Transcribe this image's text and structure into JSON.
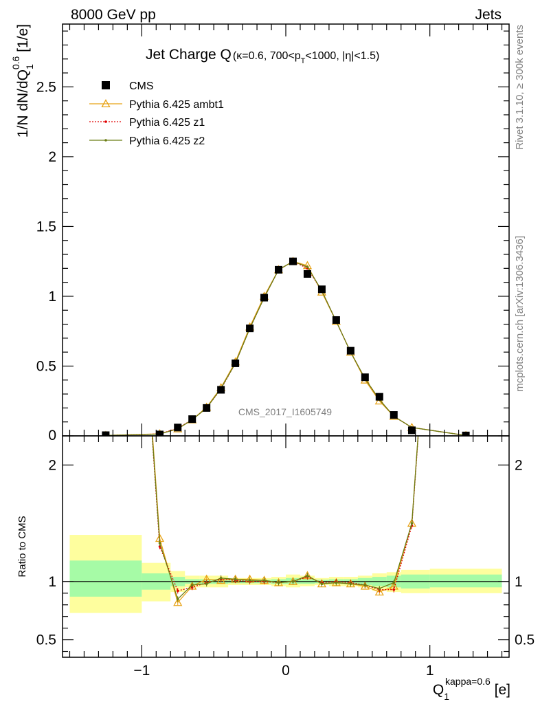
{
  "header": {
    "left": "8000 GeV pp",
    "right": "Jets"
  },
  "side": {
    "rivet": "Rivet 3.1.10, ≥ 300k events",
    "mcplots": "mcplots.cern.ch [arXiv:1306.3436]"
  },
  "watermark": "CMS_2017_I1605749",
  "colors": {
    "ambt1": "#e8a317",
    "z1": "#e00000",
    "z2": "#6b7d14",
    "band_inner": "#a6fba6",
    "band_outer": "#fefe9e"
  },
  "chart_data": [
    {
      "type": "line",
      "title": "Jet Charge Q(κ=0.6, 700<p_T<1000, |η|<1.5)",
      "title_main": "Jet Charge Q",
      "title_sub_1": "(κ=0.6, 700<p",
      "title_sub_T": "T",
      "title_sub_2": "<1000, |η|<1.5)",
      "ylabel_a": "1/N dN/dQ",
      "ylabel_sup": "0.6",
      "ylabel_sub": "1",
      "ylabel_b": " [1/e]",
      "xlim": [
        -1.55,
        1.55
      ],
      "ylim": [
        0,
        2.95
      ],
      "yticks": [
        {
          "v": 0.5,
          "label": "0.5"
        },
        {
          "v": 1,
          "label": "1"
        },
        {
          "v": 1.5,
          "label": "1.5"
        },
        {
          "v": 2,
          "label": "2"
        },
        {
          "v": 2.5,
          "label": "2.5"
        }
      ],
      "y0_label": "0",
      "legend": [
        {
          "key": "cms",
          "label": "CMS"
        },
        {
          "key": "ambt1",
          "label": "Pythia 6.425 ambt1"
        },
        {
          "key": "z1",
          "label": "Pythia 6.425 z1"
        },
        {
          "key": "z2",
          "label": "Pythia 6.425 z2"
        }
      ],
      "x": [
        -1.25,
        -0.875,
        -0.75,
        -0.65,
        -0.55,
        -0.45,
        -0.35,
        -0.25,
        -0.15,
        -0.05,
        0.05,
        0.15,
        0.25,
        0.35,
        0.45,
        0.55,
        0.65,
        0.75,
        0.875,
        1.25
      ],
      "series": [
        {
          "key": "cms",
          "name": "CMS",
          "values": [
            0.005,
            0.01,
            0.06,
            0.12,
            0.2,
            0.33,
            0.52,
            0.77,
            0.99,
            1.19,
            1.25,
            1.16,
            1.05,
            0.83,
            0.61,
            0.42,
            0.28,
            0.15,
            0.04,
            0.003
          ]
        },
        {
          "key": "ambt1",
          "name": "Pythia 6.425 ambt1",
          "values": [
            0.003,
            0.015,
            0.05,
            0.115,
            0.205,
            0.345,
            0.53,
            0.78,
            1.0,
            1.19,
            1.25,
            1.22,
            1.03,
            0.82,
            0.6,
            0.4,
            0.25,
            0.14,
            0.06,
            0.003
          ]
        },
        {
          "key": "z1",
          "name": "Pythia 6.425 z1",
          "values": [
            0.003,
            0.014,
            0.055,
            0.115,
            0.2,
            0.335,
            0.52,
            0.77,
            0.99,
            1.19,
            1.25,
            1.2,
            1.04,
            0.82,
            0.6,
            0.41,
            0.26,
            0.14,
            0.06,
            0.003
          ]
        },
        {
          "key": "z2",
          "name": "Pythia 6.425 z2",
          "values": [
            0.003,
            0.013,
            0.05,
            0.115,
            0.2,
            0.34,
            0.52,
            0.77,
            0.99,
            1.19,
            1.25,
            1.21,
            1.04,
            0.82,
            0.6,
            0.41,
            0.26,
            0.14,
            0.06,
            0.003
          ]
        }
      ]
    },
    {
      "type": "line",
      "ylabel": "Ratio to CMS",
      "xlabel_a": "Q",
      "xlabel_sub": "1",
      "xlabel_sup": "kappa=0.6",
      "xlabel_b": " [e]",
      "xlim": [
        -1.55,
        1.55
      ],
      "ylim": [
        0.35,
        2.25
      ],
      "yticks": [
        {
          "v": 0.5,
          "label": "0.5"
        },
        {
          "v": 1,
          "label": "1"
        },
        {
          "v": 2,
          "label": "2"
        }
      ],
      "xticks": [
        {
          "v": -1,
          "label": "−1"
        },
        {
          "v": 0,
          "label": "0"
        },
        {
          "v": 1,
          "label": "1"
        }
      ],
      "x": [
        -0.875,
        -0.75,
        -0.65,
        -0.55,
        -0.45,
        -0.35,
        -0.25,
        -0.15,
        -0.05,
        0.05,
        0.15,
        0.25,
        0.35,
        0.45,
        0.55,
        0.65,
        0.75,
        0.875
      ],
      "series": [
        {
          "key": "ambt1",
          "name": "Pythia 6.425 ambt1",
          "values": [
            1.37,
            0.82,
            0.96,
            1.02,
            1.01,
            1.02,
            1.02,
            1.01,
            0.99,
            1.0,
            1.05,
            0.98,
            0.99,
            0.98,
            0.96,
            0.91,
            0.96,
            1.5
          ]
        },
        {
          "key": "z1",
          "name": "Pythia 6.425 z1",
          "values": [
            1.3,
            0.92,
            0.95,
            0.99,
            1.02,
            1.01,
            1.0,
            1.0,
            0.99,
            1.0,
            1.04,
            0.99,
            1.0,
            0.99,
            0.97,
            0.93,
            0.93,
            1.48
          ]
        },
        {
          "key": "z2",
          "name": "Pythia 6.425 z2",
          "values": [
            1.33,
            0.85,
            0.97,
            0.98,
            1.03,
            1.02,
            1.01,
            1.01,
            0.99,
            1.0,
            1.05,
            0.98,
            0.99,
            0.98,
            0.97,
            0.94,
            0.99,
            1.5
          ]
        }
      ],
      "bands": [
        {
          "x0": -1.5,
          "x1": -1.0,
          "inner": [
            0.87,
            1.18
          ],
          "outer": [
            0.73,
            1.4
          ]
        },
        {
          "x0": -1.0,
          "x1": -0.8,
          "inner": [
            0.93,
            1.07
          ],
          "outer": [
            0.83,
            1.16
          ]
        },
        {
          "x0": -0.8,
          "x1": -0.7,
          "inner": [
            0.96,
            1.04
          ],
          "outer": [
            0.91,
            1.09
          ]
        },
        {
          "x0": -0.7,
          "x1": -0.6,
          "inner": [
            0.98,
            1.02
          ],
          "outer": [
            0.95,
            1.05
          ]
        },
        {
          "x0": -0.6,
          "x1": -0.4,
          "inner": [
            0.98,
            1.02
          ],
          "outer": [
            0.95,
            1.05
          ]
        },
        {
          "x0": -0.4,
          "x1": -0.1,
          "inner": [
            0.985,
            1.015
          ],
          "outer": [
            0.97,
            1.03
          ]
        },
        {
          "x0": -0.1,
          "x1": 0.0,
          "inner": [
            0.98,
            1.02
          ],
          "outer": [
            0.96,
            1.04
          ]
        },
        {
          "x0": 0.0,
          "x1": 0.1,
          "inner": [
            0.98,
            1.03
          ],
          "outer": [
            0.95,
            1.06
          ]
        },
        {
          "x0": 0.1,
          "x1": 0.2,
          "inner": [
            0.98,
            1.02
          ],
          "outer": [
            0.96,
            1.05
          ]
        },
        {
          "x0": 0.2,
          "x1": 0.3,
          "inner": [
            0.985,
            1.015
          ],
          "outer": [
            0.97,
            1.03
          ]
        },
        {
          "x0": 0.3,
          "x1": 0.4,
          "inner": [
            0.98,
            1.02
          ],
          "outer": [
            0.96,
            1.04
          ]
        },
        {
          "x0": 0.4,
          "x1": 0.5,
          "inner": [
            0.98,
            1.02
          ],
          "outer": [
            0.96,
            1.04
          ]
        },
        {
          "x0": 0.5,
          "x1": 0.6,
          "inner": [
            0.97,
            1.03
          ],
          "outer": [
            0.95,
            1.05
          ]
        },
        {
          "x0": 0.6,
          "x1": 0.7,
          "inner": [
            0.96,
            1.04
          ],
          "outer": [
            0.92,
            1.07
          ]
        },
        {
          "x0": 0.7,
          "x1": 0.8,
          "inner": [
            0.95,
            1.05
          ],
          "outer": [
            0.91,
            1.08
          ]
        },
        {
          "x0": 0.8,
          "x1": 1.0,
          "inner": [
            0.94,
            1.06
          ],
          "outer": [
            0.9,
            1.1
          ]
        },
        {
          "x0": 1.0,
          "x1": 1.5,
          "inner": [
            0.95,
            1.06
          ],
          "outer": [
            0.9,
            1.11
          ]
        }
      ]
    }
  ]
}
